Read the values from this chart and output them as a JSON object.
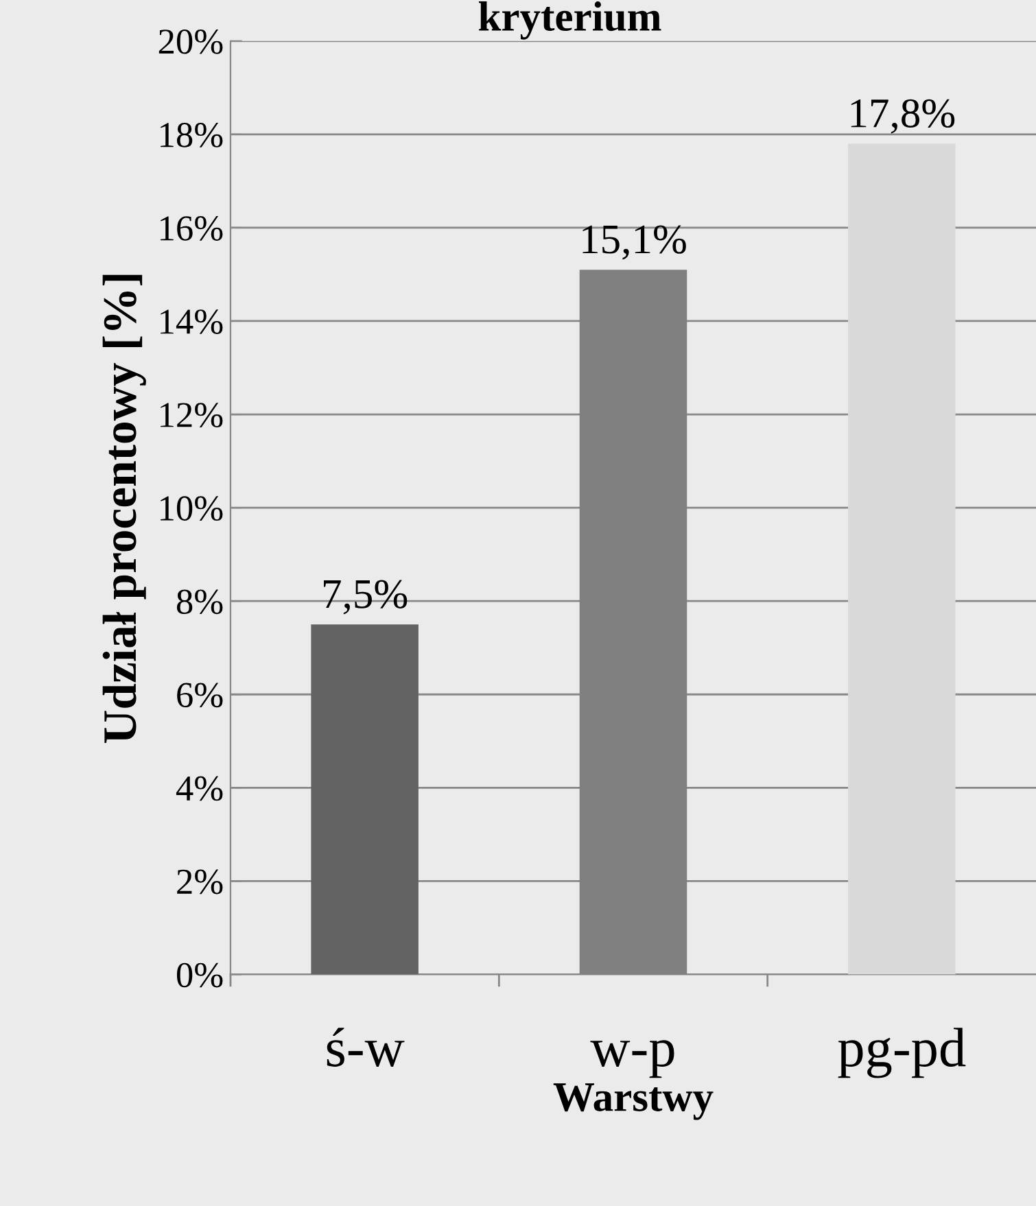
{
  "chart_data": {
    "type": "bar",
    "title": "kryterium",
    "xlabel": "Warstwy",
    "ylabel": "Udział procentowy [%]",
    "categories": [
      "ś-w",
      "w-p",
      "pg-pd"
    ],
    "values": [
      7.5,
      15.1,
      17.8
    ],
    "colors": [
      "#636363",
      "#808080",
      "#d9d9d9"
    ],
    "value_labels": [
      "7,5%",
      "15,1%",
      "17,8%"
    ],
    "ylim": [
      0,
      20
    ],
    "yticks": [
      {
        "value": 0,
        "label": "0%"
      },
      {
        "value": 2,
        "label": "2%"
      },
      {
        "value": 4,
        "label": "4%"
      },
      {
        "value": 6,
        "label": "6%"
      },
      {
        "value": 8,
        "label": "8%"
      },
      {
        "value": 10,
        "label": "10%"
      },
      {
        "value": 12,
        "label": "12%"
      },
      {
        "value": 14,
        "label": "14%"
      },
      {
        "value": 16,
        "label": "16%"
      },
      {
        "value": 18,
        "label": "18%"
      },
      {
        "value": 20,
        "label": "20%"
      }
    ],
    "grid": "y",
    "legend": false
  }
}
